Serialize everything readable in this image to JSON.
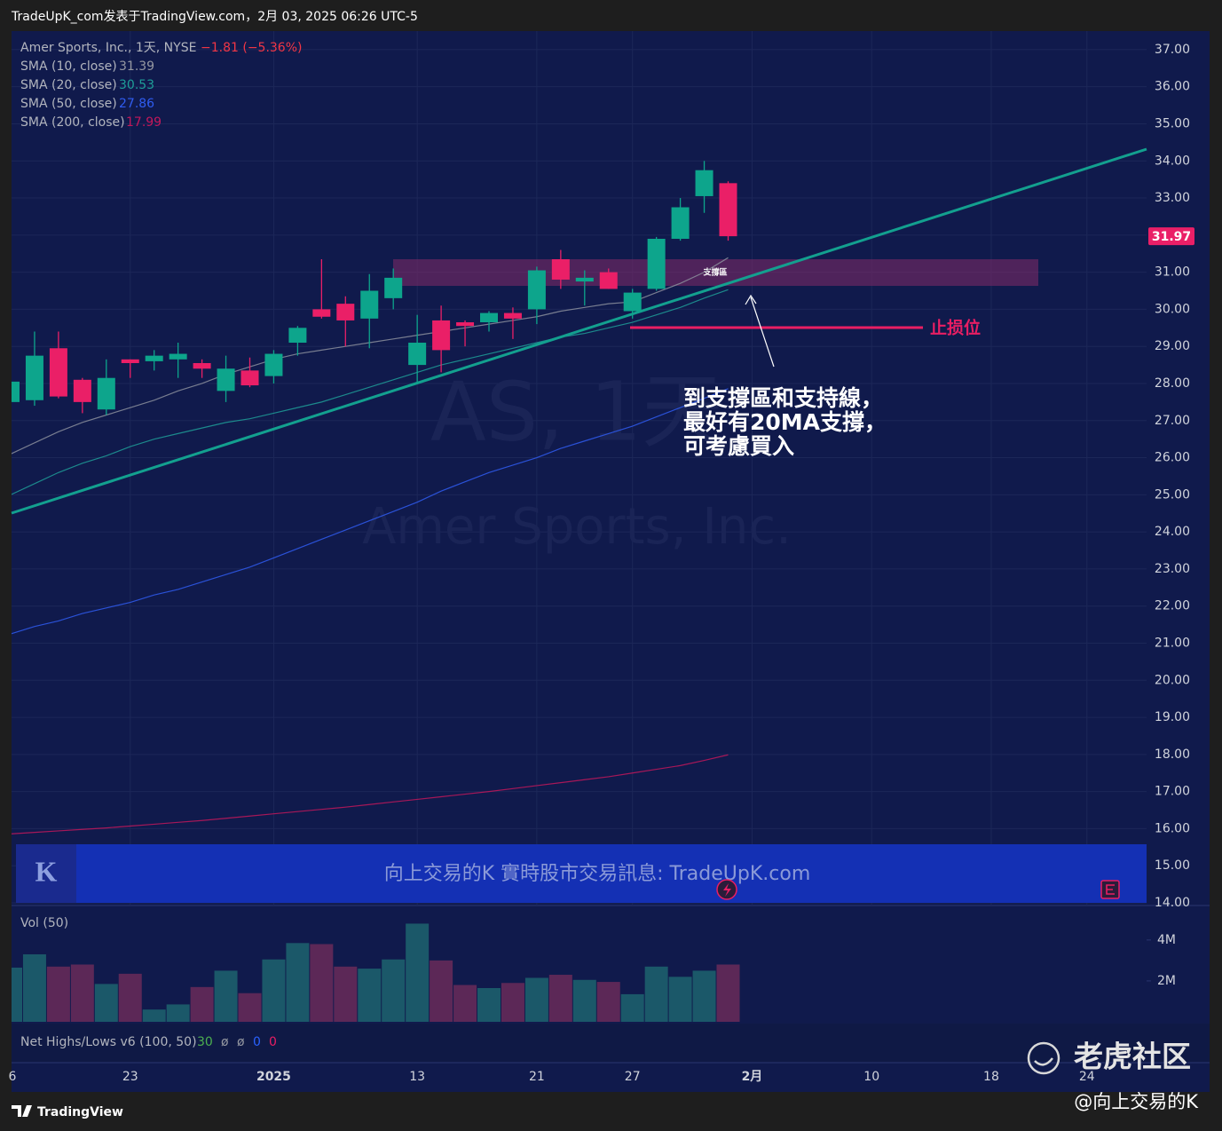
{
  "header": {
    "title": "TradeUpK_com发表于TradingView.com，2月 03, 2025 06:26 UTC-5"
  },
  "chart_data": {
    "type": "candlestick",
    "symbol": "Amer Sports, Inc., 1天, NYSE",
    "change": "−1.81 (−5.36%)",
    "categories": [
      "6",
      null,
      null,
      null,
      null,
      "23",
      null,
      null,
      null,
      null,
      null,
      "2025",
      null,
      null,
      null,
      null,
      null,
      "13",
      null,
      null,
      null,
      null,
      "21",
      null,
      null,
      null,
      "27",
      null,
      null,
      null,
      null,
      "2月",
      null,
      null,
      null,
      null,
      "10",
      null,
      null,
      null,
      null,
      "18",
      null,
      null,
      null,
      "24"
    ],
    "open": [
      27.5,
      27.55,
      28.95,
      28.1,
      27.3,
      28.65,
      28.6,
      28.65,
      28.55,
      27.8,
      28.35,
      28.2,
      29.1,
      30.0,
      30.15,
      29.75,
      30.3,
      28.5,
      29.7,
      29.65,
      29.65,
      29.9,
      30.0,
      31.35,
      30.75,
      31.0,
      29.95,
      30.55,
      31.9,
      33.05,
      33.4,
      null,
      null,
      null,
      null,
      null,
      null,
      null,
      null,
      null,
      null,
      null,
      null,
      null,
      null,
      null
    ],
    "high": [
      28.1,
      29.4,
      29.4,
      28.15,
      28.65,
      28.65,
      28.9,
      29.1,
      28.65,
      28.75,
      28.7,
      28.9,
      29.55,
      31.35,
      30.35,
      30.95,
      31.1,
      29.85,
      30.1,
      29.7,
      29.95,
      30.05,
      31.15,
      31.6,
      31.05,
      31.1,
      30.55,
      31.95,
      33.0,
      34.0,
      33.45,
      null,
      null,
      null,
      null,
      null,
      null,
      null,
      null,
      null,
      null,
      null,
      null,
      null,
      null,
      null
    ],
    "low": [
      27.4,
      27.4,
      27.6,
      27.2,
      27.15,
      28.15,
      28.35,
      28.15,
      28.15,
      27.5,
      27.9,
      28.0,
      28.75,
      29.75,
      29.0,
      28.95,
      30.0,
      28.0,
      28.3,
      29.0,
      29.4,
      29.2,
      29.6,
      30.55,
      30.1,
      30.55,
      29.75,
      30.5,
      31.85,
      32.6,
      31.85,
      null,
      null,
      null,
      null,
      null,
      null,
      null,
      null,
      null,
      null,
      null,
      null,
      null,
      null,
      null
    ],
    "close": [
      28.05,
      28.75,
      27.65,
      27.5,
      28.15,
      28.55,
      28.75,
      28.8,
      28.4,
      28.4,
      27.95,
      28.8,
      29.5,
      29.8,
      29.7,
      30.5,
      30.85,
      29.1,
      28.9,
      29.55,
      29.9,
      29.75,
      31.05,
      30.8,
      30.85,
      30.55,
      30.45,
      31.9,
      32.75,
      33.75,
      31.97,
      null,
      null,
      null,
      null,
      null,
      null,
      null,
      null,
      null,
      null,
      null,
      null,
      null,
      null,
      null
    ],
    "up_color": "#0da58c",
    "down_color": "#ea1f67",
    "ylim": [
      14,
      37.5
    ],
    "yticks": [
      {
        "value": 37,
        "label": "37.00"
      },
      {
        "value": 36,
        "label": "36.00"
      },
      {
        "value": 35,
        "label": "35.00"
      },
      {
        "value": 34,
        "label": "34.00"
      },
      {
        "value": 33,
        "label": "33.00"
      },
      {
        "value": 32,
        "label": "32.00"
      },
      {
        "value": 31,
        "label": "31.00"
      },
      {
        "value": 30,
        "label": "30.00"
      },
      {
        "value": 29,
        "label": "29.00"
      },
      {
        "value": 28,
        "label": "28.00"
      },
      {
        "value": 27,
        "label": "27.00"
      },
      {
        "value": 26,
        "label": "26.00"
      },
      {
        "value": 25,
        "label": "25.00"
      },
      {
        "value": 24,
        "label": "24.00"
      },
      {
        "value": 23,
        "label": "23.00"
      },
      {
        "value": 22,
        "label": "22.00"
      },
      {
        "value": 21,
        "label": "21.00"
      },
      {
        "value": 20,
        "label": "20.00"
      },
      {
        "value": 19,
        "label": "19.00"
      },
      {
        "value": 18,
        "label": "18.00"
      },
      {
        "value": 17,
        "label": "17.00"
      },
      {
        "value": 16,
        "label": "16.00"
      },
      {
        "value": 15,
        "label": "15.00"
      },
      {
        "value": 14,
        "label": "14.00"
      }
    ],
    "last_price": {
      "value": 31.97,
      "label": "31.97"
    },
    "grid": true,
    "indicators": [
      {
        "name": "SMA (10, close)",
        "value": 31.39,
        "color": "#8b8f9c",
        "values": [
          26.1,
          26.4,
          26.7,
          26.95,
          27.15,
          27.35,
          27.55,
          27.8,
          28.0,
          28.25,
          28.45,
          28.65,
          28.8,
          28.9,
          29.0,
          29.1,
          29.2,
          29.3,
          29.4,
          29.5,
          29.6,
          29.7,
          29.8,
          29.95,
          30.05,
          30.15,
          30.2,
          30.45,
          30.7,
          31.0,
          31.39
        ]
      },
      {
        "name": "SMA (20, close)",
        "value": 30.53,
        "color": "#1f9e98",
        "values": [
          25.0,
          25.3,
          25.6,
          25.85,
          26.05,
          26.3,
          26.5,
          26.65,
          26.8,
          26.95,
          27.05,
          27.2,
          27.35,
          27.5,
          27.7,
          27.9,
          28.1,
          28.3,
          28.5,
          28.65,
          28.8,
          28.95,
          29.1,
          29.25,
          29.35,
          29.5,
          29.65,
          29.85,
          30.05,
          30.3,
          30.53
        ]
      },
      {
        "name": "SMA (50, close)",
        "value": 27.86,
        "color": "#2f5cf0",
        "values": [
          21.25,
          21.45,
          21.6,
          21.8,
          21.95,
          22.1,
          22.3,
          22.45,
          22.65,
          22.85,
          23.05,
          23.3,
          23.55,
          23.8,
          24.05,
          24.3,
          24.55,
          24.8,
          25.1,
          25.35,
          25.6,
          25.8,
          26.0,
          26.25,
          26.45,
          26.65,
          26.85,
          27.1,
          27.35,
          27.6,
          27.86
        ]
      },
      {
        "name": "SMA (200, close)",
        "value": 17.99,
        "color": "#c2185b",
        "values": [
          15.86,
          15.9,
          15.94,
          15.98,
          16.02,
          16.07,
          16.12,
          16.17,
          16.22,
          16.28,
          16.34,
          16.4,
          16.46,
          16.52,
          16.58,
          16.65,
          16.72,
          16.79,
          16.86,
          16.93,
          17.0,
          17.08,
          17.16,
          17.24,
          17.32,
          17.4,
          17.5,
          17.6,
          17.7,
          17.84,
          17.99
        ]
      }
    ],
    "volume": {
      "title": "Vol (50)",
      "up_color": "#1b5869",
      "down_color": "#5c2857",
      "values": [
        2650000,
        3300000,
        2700000,
        2800000,
        1850000,
        2350000,
        600000,
        850000,
        1700000,
        2500000,
        1400000,
        3050000,
        3850000,
        3800000,
        2700000,
        2600000,
        3050000,
        4800000,
        3000000,
        1800000,
        1650000,
        1900000,
        2150000,
        2300000,
        2050000,
        1950000,
        1350000,
        2700000,
        2200000,
        2500000,
        2800000
      ],
      "ylim": [
        0,
        5600000
      ],
      "yticks": [
        {
          "value": 4000000,
          "label": "4M"
        },
        {
          "value": 2000000,
          "label": "2M"
        }
      ]
    },
    "net_highs_lows": {
      "title": "Net Highs/Lows v6 (100, 50)",
      "readings": [
        {
          "text": "30",
          "color": "#4caf50"
        },
        {
          "text": "ø",
          "color": "#9598a1"
        },
        {
          "text": "ø",
          "color": "#9598a1"
        },
        {
          "text": "0",
          "color": "#2962ff"
        },
        {
          "text": "0",
          "color": "#e91e63"
        }
      ]
    }
  },
  "annotations": {
    "support_zone": "支撐區",
    "stop_loss": "止损位",
    "note": [
      "到支撐區和支持線，",
      "最好有20MA支撐，",
      "可考慮買入"
    ]
  },
  "watermark": [
    "AS, 1天",
    "Amer Sports, Inc."
  ],
  "banner": {
    "logo": "K",
    "text": "向上交易的K 實時股市交易訊息: TradeUpK.com"
  },
  "footer": {
    "brand": "TradingView",
    "author": "@向上交易的K",
    "community": "老虎社区"
  }
}
